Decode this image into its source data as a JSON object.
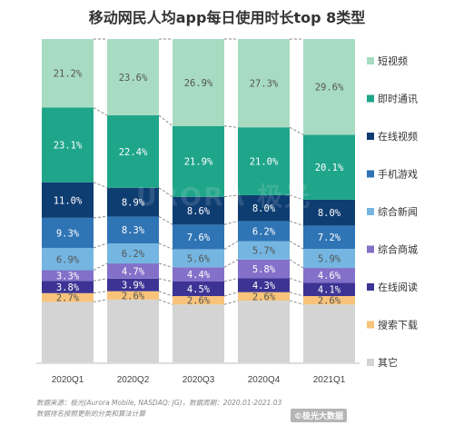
{
  "title": "移动网民人均app每日使用时长top 8类型",
  "watermark": "URORA 极光",
  "footnote": {
    "line1": "数据来源：极光(Aurora Mobile, NASDAQ: JG)，数据周期：2020.01-2021.03",
    "line2": "数据排名按照更新的分类和算法计算"
  },
  "brand": "©极光大数据",
  "colors": {
    "短视频": "#a8dcc2",
    "即时通讯": "#1fa58a",
    "在线视频": "#0e3d72",
    "手机游戏": "#2f74b4",
    "综合新闻": "#74b6e1",
    "综合商城": "#8370c9",
    "在线阅读": "#3c3394",
    "搜索下载": "#f8c37a",
    "其它": "#d4d4d4"
  },
  "chart_data": {
    "type": "bar",
    "stacked": true,
    "normalized": true,
    "title": "移动网民人均app每日使用时长top 8类型",
    "categories": [
      "2020Q1",
      "2020Q2",
      "2020Q3",
      "2020Q4",
      "2021Q1"
    ],
    "series": [
      {
        "name": "其它",
        "values": [
          null,
          null,
          null,
          null,
          null
        ]
      },
      {
        "name": "搜索下载",
        "values": [
          2.7,
          2.6,
          2.6,
          2.6,
          2.6
        ]
      },
      {
        "name": "在线阅读",
        "values": [
          3.8,
          3.9,
          4.5,
          4.3,
          4.1
        ]
      },
      {
        "name": "综合商城",
        "values": [
          3.3,
          4.7,
          4.4,
          5.8,
          4.6
        ]
      },
      {
        "name": "综合新闻",
        "values": [
          6.9,
          6.2,
          5.6,
          5.7,
          5.9
        ]
      },
      {
        "name": "手机游戏",
        "values": [
          9.3,
          8.3,
          7.6,
          6.2,
          7.2
        ]
      },
      {
        "name": "在线视频",
        "values": [
          11.0,
          8.9,
          8.6,
          8.0,
          8.0
        ]
      },
      {
        "name": "即时通讯",
        "values": [
          23.1,
          22.4,
          21.9,
          21.0,
          20.1
        ]
      },
      {
        "name": "短视频",
        "values": [
          21.2,
          23.6,
          26.9,
          27.3,
          29.6
        ]
      }
    ],
    "data_labels": [
      {
        "series": "短视频",
        "labels": [
          "21.2%",
          "23.6%",
          "26.9%",
          "27.3%",
          "29.6%"
        ]
      },
      {
        "series": "即时通讯",
        "labels": [
          "23.1%",
          "22.4%",
          "21.9%",
          "21.0%",
          "20.1%"
        ]
      },
      {
        "series": "在线视频",
        "labels": [
          "11.0%",
          "8.9%",
          "8.6%",
          "8.0%",
          "8.0%"
        ]
      },
      {
        "series": "手机游戏",
        "labels": [
          "9.3%",
          "8.3%",
          "7.6%",
          "6.2%",
          "7.2%"
        ]
      },
      {
        "series": "综合新闻",
        "labels": [
          "6.9%",
          "6.2%",
          "5.6%",
          "5.7%",
          "5.9%"
        ]
      },
      {
        "series": "综合商城",
        "labels": [
          "3.3%",
          "4.7%",
          "4.4%",
          "5.8%",
          "4.6%"
        ]
      },
      {
        "series": "在线阅读",
        "labels": [
          "3.8%",
          "3.9%",
          "4.5%",
          "4.3%",
          "4.1%"
        ]
      },
      {
        "series": "搜索下载",
        "labels": [
          "2.7%",
          "2.6%",
          "2.6%",
          "2.6%",
          "2.6%"
        ]
      }
    ],
    "legend": [
      "短视频",
      "即时通讯",
      "在线视频",
      "手机游戏",
      "综合新闻",
      "综合商城",
      "在线阅读",
      "搜索下载",
      "其它"
    ],
    "legend_position": "right",
    "ylim": [
      0,
      100
    ],
    "grid": false,
    "connector_lines": "dashed"
  }
}
